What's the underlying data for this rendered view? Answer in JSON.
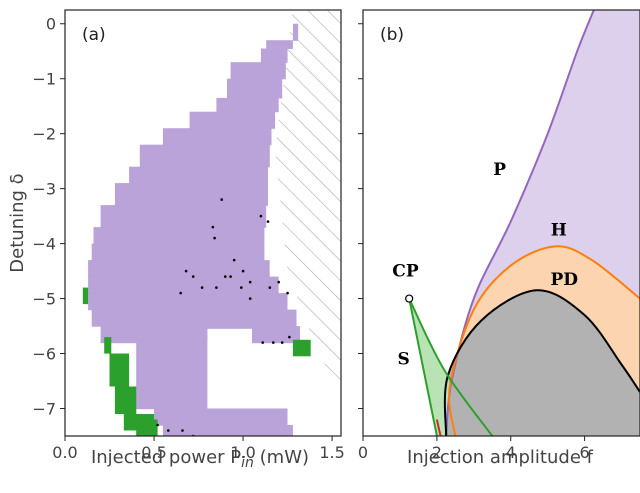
{
  "chart_data": [
    {
      "type": "heatmap",
      "panel_label": "(a)",
      "xlabel_main": "Injected power P",
      "xlabel_sub": "in",
      "xlabel_unit": " (mW)",
      "ylabel": "Detuning δ",
      "xlim": [
        0.0,
        1.55
      ],
      "ylim": [
        -7.5,
        0.25
      ],
      "xticks": [
        {
          "v": 0.0,
          "l": "0.0"
        },
        {
          "v": 0.5,
          "l": "0.5"
        },
        {
          "v": 1.0,
          "l": "1.0"
        },
        {
          "v": 1.5,
          "l": "1.5"
        }
      ],
      "yticks": [
        {
          "v": 0,
          "l": "0"
        },
        {
          "v": -1,
          "l": "−1"
        },
        {
          "v": -2,
          "l": "−2"
        },
        {
          "v": -3,
          "l": "−3"
        },
        {
          "v": -4,
          "l": "−4"
        },
        {
          "v": -5,
          "l": "−5"
        },
        {
          "v": -6,
          "l": "−6"
        },
        {
          "v": -7,
          "l": "−7"
        }
      ],
      "colors": {
        "purple": "#b9a3d8",
        "green": "#2ca02c",
        "hatch": "#aaaaaa",
        "dots": "#000000"
      },
      "purple_rows": [
        [
          0.0,
          1.28,
          1.31
        ],
        [
          -0.3,
          1.13,
          1.28
        ],
        [
          -0.45,
          1.1,
          1.25
        ],
        [
          -0.7,
          0.93,
          1.24
        ],
        [
          -1.0,
          0.91,
          1.22
        ],
        [
          -1.35,
          0.85,
          1.2
        ],
        [
          -1.6,
          0.7,
          1.18
        ],
        [
          -1.9,
          0.55,
          1.16
        ],
        [
          -2.2,
          0.42,
          1.15
        ],
        [
          -2.6,
          0.36,
          1.14
        ],
        [
          -2.9,
          0.28,
          1.14
        ],
        [
          -3.3,
          0.2,
          1.13
        ],
        [
          -3.7,
          0.16,
          1.12
        ],
        [
          -4.0,
          0.15,
          1.12
        ],
        [
          -4.3,
          0.13,
          1.15
        ],
        [
          -4.6,
          0.13,
          1.2
        ],
        [
          -4.9,
          0.13,
          1.25
        ],
        [
          -5.2,
          0.15,
          1.3
        ],
        [
          -5.5,
          0.2,
          1.32
        ],
        [
          -5.8,
          0.4,
          0.8
        ],
        [
          -7.0,
          0.5,
          1.25
        ],
        [
          -7.3,
          0.55,
          1.28
        ],
        [
          -7.5,
          0.55,
          1.28
        ]
      ],
      "purple_exclude": [
        [
          -5.55,
          -5.95,
          0.8,
          1.05
        ]
      ],
      "green_cells": [
        [
          0.1,
          -4.8,
          0.13,
          -5.1
        ],
        [
          0.22,
          -5.7,
          0.26,
          -6.0
        ],
        [
          0.25,
          -6.0,
          0.36,
          -6.6
        ],
        [
          0.28,
          -6.6,
          0.4,
          -7.1
        ],
        [
          0.33,
          -7.1,
          0.45,
          -7.4
        ],
        [
          0.4,
          -7.1,
          0.5,
          -7.5
        ],
        [
          0.47,
          -7.2,
          0.52,
          -7.5
        ],
        [
          1.28,
          -5.75,
          1.38,
          -6.05
        ]
      ],
      "hatch_left_edge": [
        [
          1.28,
          0.25
        ],
        [
          1.18,
          -2.3
        ],
        [
          1.25,
          -4.5
        ],
        [
          1.4,
          -5.8
        ],
        [
          1.55,
          -6.8
        ]
      ],
      "dots": [
        [
          0.88,
          -3.2
        ],
        [
          1.1,
          -3.5
        ],
        [
          1.14,
          -3.6
        ],
        [
          0.83,
          -3.7
        ],
        [
          0.84,
          -3.9
        ],
        [
          0.95,
          -4.3
        ],
        [
          0.9,
          -4.6
        ],
        [
          0.93,
          -4.6
        ],
        [
          1.0,
          -4.5
        ],
        [
          1.04,
          -4.7
        ],
        [
          0.77,
          -4.8
        ],
        [
          0.85,
          -4.8
        ],
        [
          0.99,
          -4.8
        ],
        [
          0.72,
          -4.6
        ],
        [
          0.65,
          -4.9
        ],
        [
          1.15,
          -4.8
        ],
        [
          1.2,
          -4.7
        ],
        [
          1.25,
          -4.9
        ],
        [
          1.04,
          -5.0
        ],
        [
          0.68,
          -4.5
        ],
        [
          1.11,
          -5.8
        ],
        [
          1.17,
          -5.8
        ],
        [
          1.22,
          -5.8
        ],
        [
          1.26,
          -5.7
        ],
        [
          0.52,
          -7.3
        ],
        [
          0.58,
          -7.4
        ],
        [
          0.66,
          -7.4
        ],
        [
          0.72,
          -7.5
        ]
      ]
    },
    {
      "type": "area",
      "panel_label": "(b)",
      "xlabel": "Injection amplitude f",
      "xlim": [
        0,
        7.5
      ],
      "ylim": [
        -7.5,
        0.25
      ],
      "xticks": [
        {
          "v": 0,
          "l": "0"
        },
        {
          "v": 2,
          "l": "2"
        },
        {
          "v": 4,
          "l": "4"
        },
        {
          "v": 6,
          "l": "6"
        }
      ],
      "region_labels": [
        {
          "text": "P",
          "x": 3.7,
          "y": -2.75
        },
        {
          "text": "H",
          "x": 5.3,
          "y": -3.85
        },
        {
          "text": "PD",
          "x": 5.45,
          "y": -4.75
        },
        {
          "text": "S",
          "x": 1.1,
          "y": -6.2
        },
        {
          "text": "CP",
          "x": 1.15,
          "y": -4.6
        }
      ],
      "cusp_point": {
        "x": 1.25,
        "y": -5.0
      },
      "curves": {
        "P": {
          "color": "#9467bd",
          "fill": "#dcd0ec",
          "points": [
            [
              2.25,
              -7.5
            ],
            [
              2.4,
              -6.5
            ],
            [
              3.0,
              -5.0
            ],
            [
              4.0,
              -3.6
            ],
            [
              5.0,
              -2.0
            ],
            [
              5.8,
              -0.5
            ],
            [
              6.25,
              0.25
            ]
          ]
        },
        "H": {
          "color": "#ff7f0e",
          "fill": "#fdd4b0",
          "points": [
            [
              2.5,
              -7.5
            ],
            [
              2.35,
              -6.6
            ],
            [
              3.0,
              -5.2
            ],
            [
              4.0,
              -4.4
            ],
            [
              5.2,
              -4.05
            ],
            [
              6.2,
              -4.3
            ],
            [
              7.5,
              -5.0
            ]
          ]
        },
        "PD": {
          "color": "#000000",
          "fill": "#b2b2b2",
          "points": [
            [
              2.25,
              -7.5
            ],
            [
              2.3,
              -6.4
            ],
            [
              3.2,
              -5.4
            ],
            [
              4.7,
              -4.85
            ],
            [
              6.0,
              -5.3
            ],
            [
              7.0,
              -6.2
            ],
            [
              7.5,
              -6.7
            ]
          ]
        },
        "S1": {
          "color": "#2ca02c",
          "fill": "#b9e2b5",
          "points": [
            [
              1.25,
              -5.0
            ],
            [
              2.0,
              -7.5
            ]
          ]
        },
        "S2": {
          "color": "#2ca02c",
          "points": [
            [
              1.25,
              -5.0
            ],
            [
              2.2,
              -6.3
            ],
            [
              3.5,
              -7.5
            ]
          ]
        },
        "extra": {
          "color": "#d62728",
          "points": [
            [
              2.0,
              -7.2
            ],
            [
              2.1,
              -7.5
            ]
          ]
        }
      }
    }
  ]
}
